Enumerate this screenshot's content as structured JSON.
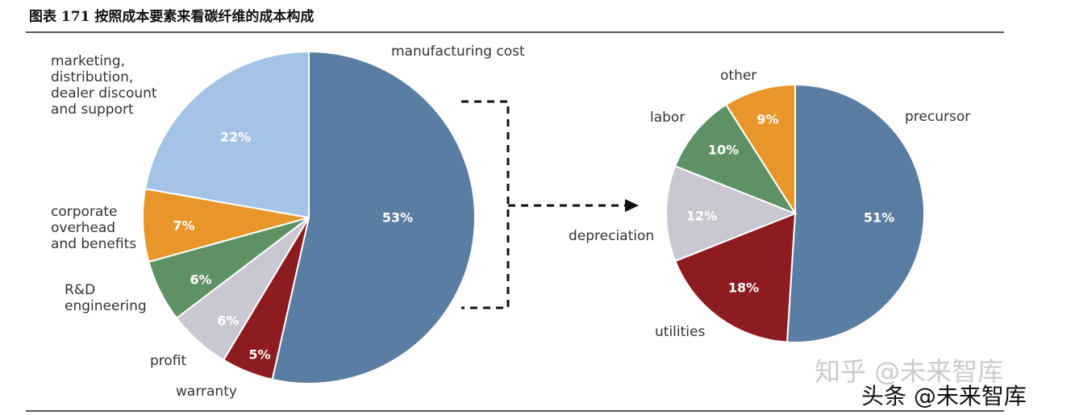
{
  "title": "图表 171  按照成本要素来看碳纤维的成本构成",
  "chart_data": [
    {
      "type": "pie",
      "categories": [
        "manufacturing cost",
        "warranty",
        "profit",
        "R&D\nengineering",
        "corporate\noverhead\nand benefits",
        "marketing,\ndistribution,\ndealer discount\nand support"
      ],
      "values": [
        53,
        5,
        6,
        6,
        7,
        22
      ],
      "value_labels": [
        "53%",
        "5%",
        "6%",
        "6%",
        "7%",
        "22%"
      ],
      "colors": [
        "#5a7ea3",
        "#8c1c1f",
        "#c9c7d1",
        "#5e9264",
        "#e8952c",
        "#a5c3e6"
      ]
    },
    {
      "type": "pie",
      "categories": [
        "precursor",
        "utilities",
        "depreciation",
        "labor",
        "other"
      ],
      "values": [
        51,
        18,
        12,
        10,
        9
      ],
      "value_labels": [
        "51%",
        "18%",
        "12%",
        "10%",
        "9%"
      ],
      "colors": [
        "#5a7ea3",
        "#8c1c1f",
        "#c9c7d1",
        "#5e9264",
        "#e8952c"
      ]
    }
  ],
  "watermarks": [
    "知乎 @未来智库",
    "头条 @未来智库"
  ]
}
